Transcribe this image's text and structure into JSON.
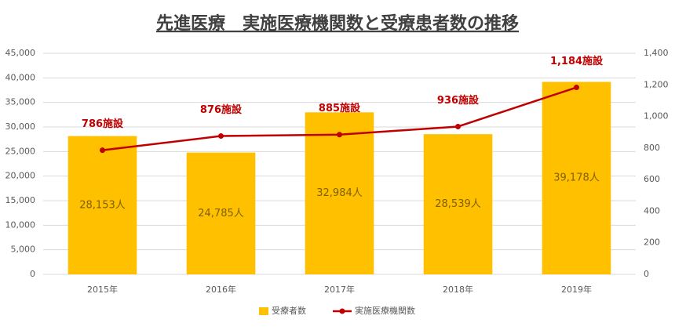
{
  "chart_data": {
    "type": "bar_line",
    "title": "先進医療　実施医療機関数と受療患者数の推移",
    "categories": [
      "2015年",
      "2016年",
      "2017年",
      "2018年",
      "2019年"
    ],
    "series": [
      {
        "name": "受療者数",
        "type": "bar",
        "color": "#FFC000",
        "values": [
          28153,
          24785,
          32984,
          28539,
          39178
        ],
        "value_labels": [
          "28,153人",
          "24,785人",
          "32,984人",
          "28,539人",
          "39,178人"
        ]
      },
      {
        "name": "実施医療機関数",
        "type": "line",
        "axis": "y2",
        "color": "#C00000",
        "values": [
          786,
          876,
          885,
          936,
          1184
        ],
        "value_labels": [
          "786施設",
          "876施設",
          "885施設",
          "936施設",
          "1,184施設"
        ]
      }
    ],
    "ylim": [
      0,
      45000
    ],
    "yticks": [
      0,
      {
        "value": 5000,
        "label": "5,000"
      },
      {
        "value": 10000,
        "label": "10,000"
      },
      {
        "value": 15000,
        "label": "15,000"
      },
      {
        "value": 20000,
        "label": "20,000"
      },
      {
        "value": 25000,
        "label": "25,000"
      },
      {
        "value": 30000,
        "label": "30,000"
      },
      {
        "value": 35000,
        "label": "35,000"
      },
      {
        "value": 40000,
        "label": "40,000"
      },
      {
        "value": 45000,
        "label": "45,000"
      }
    ],
    "y2lim": [
      0,
      1400
    ],
    "y2ticks": [
      0,
      200,
      400,
      600,
      800,
      {
        "value": 1000,
        "label": "1,000"
      },
      {
        "value": 1200,
        "label": "1,200"
      },
      {
        "value": 1400,
        "label": "1,400"
      }
    ],
    "grid": true
  }
}
